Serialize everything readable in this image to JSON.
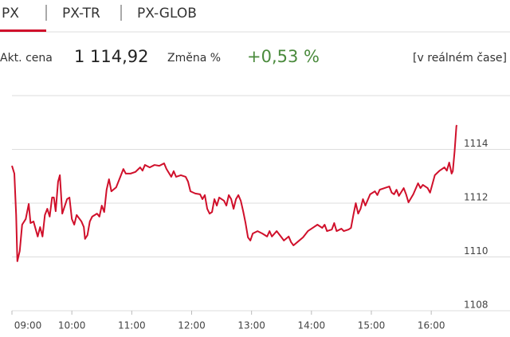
{
  "tabs": [
    "PX",
    "PX-TR",
    "PX-GLOB"
  ],
  "info": {
    "price_label": "Akt. cena",
    "price": "1 114,92",
    "change_label": "Změna %",
    "change": "+0,53 %",
    "realtime": "[v reálném čase]"
  },
  "chart_data": {
    "type": "line",
    "color": "#d0102b",
    "grid": true,
    "x": [
      9.0,
      9.04,
      9.07,
      9.09,
      9.13,
      9.17,
      9.23,
      9.28,
      9.31,
      9.36,
      9.43,
      9.47,
      9.51,
      9.55,
      9.59,
      9.63,
      9.67,
      9.7,
      9.73,
      9.77,
      9.8,
      9.84,
      9.92,
      9.96,
      10.0,
      10.04,
      10.08,
      10.16,
      10.2,
      10.22,
      10.26,
      10.3,
      10.34,
      10.42,
      10.46,
      10.5,
      10.54,
      10.58,
      10.62,
      10.66,
      10.74,
      10.82,
      10.86,
      10.9,
      10.98,
      11.06,
      11.14,
      11.18,
      11.22,
      11.3,
      11.38,
      11.46,
      11.54,
      11.58,
      11.66,
      11.7,
      11.74,
      11.82,
      11.9,
      11.94,
      11.98,
      12.06,
      12.14,
      12.18,
      12.22,
      12.26,
      12.3,
      12.34,
      12.38,
      12.42,
      12.46,
      12.54,
      12.58,
      12.62,
      12.66,
      12.7,
      12.74,
      12.78,
      12.82,
      12.86,
      12.9,
      12.94,
      12.98,
      13.02,
      13.1,
      13.18,
      13.26,
      13.3,
      13.34,
      13.42,
      13.5,
      13.54,
      13.62,
      13.66,
      13.7,
      13.78,
      13.86,
      13.94,
      14.02,
      14.1,
      14.18,
      14.22,
      14.26,
      14.34,
      14.38,
      14.42,
      14.5,
      14.54,
      14.62,
      14.66,
      14.7,
      14.74,
      14.78,
      14.82,
      14.86,
      14.9,
      14.98,
      15.06,
      15.1,
      15.14,
      15.22,
      15.3,
      15.34,
      15.38,
      15.42,
      15.46,
      15.54,
      15.58,
      15.62,
      15.7,
      15.78,
      15.82,
      15.86,
      15.94,
      15.98,
      16.06,
      16.14,
      16.22,
      16.26,
      16.3,
      16.34,
      16.36,
      16.39,
      16.42,
      16.43
    ],
    "values": [
      1113.39,
      1113.1,
      1111.56,
      1109.84,
      1110.22,
      1111.2,
      1111.41,
      1111.97,
      1111.26,
      1111.32,
      1110.76,
      1111.11,
      1110.76,
      1111.56,
      1111.79,
      1111.5,
      1112.21,
      1112.21,
      1111.7,
      1112.8,
      1113.04,
      1111.61,
      1112.15,
      1112.21,
      1111.41,
      1111.2,
      1111.56,
      1111.32,
      1111.11,
      1110.67,
      1110.81,
      1111.32,
      1111.5,
      1111.61,
      1111.5,
      1111.91,
      1111.67,
      1112.5,
      1112.89,
      1112.44,
      1112.59,
      1113.04,
      1113.27,
      1113.1,
      1113.1,
      1113.16,
      1113.33,
      1113.21,
      1113.42,
      1113.33,
      1113.42,
      1113.39,
      1113.48,
      1113.27,
      1112.98,
      1113.19,
      1112.98,
      1113.04,
      1112.98,
      1112.8,
      1112.44,
      1112.36,
      1112.33,
      1112.15,
      1112.3,
      1111.79,
      1111.61,
      1111.67,
      1112.15,
      1111.91,
      1112.21,
      1112.09,
      1111.91,
      1112.3,
      1112.15,
      1111.79,
      1112.15,
      1112.3,
      1112.09,
      1111.7,
      1111.26,
      1110.73,
      1110.61,
      1110.87,
      1110.96,
      1110.87,
      1110.76,
      1110.96,
      1110.76,
      1110.96,
      1110.73,
      1110.61,
      1110.76,
      1110.55,
      1110.43,
      1110.58,
      1110.73,
      1110.96,
      1111.08,
      1111.2,
      1111.08,
      1111.2,
      1110.96,
      1111.02,
      1111.26,
      1110.96,
      1111.05,
      1110.96,
      1111.02,
      1111.08,
      1111.56,
      1112.0,
      1111.61,
      1111.79,
      1112.15,
      1111.91,
      1112.33,
      1112.44,
      1112.3,
      1112.5,
      1112.56,
      1112.62,
      1112.39,
      1112.33,
      1112.5,
      1112.27,
      1112.56,
      1112.33,
      1112.03,
      1112.33,
      1112.74,
      1112.56,
      1112.68,
      1112.56,
      1112.39,
      1113.04,
      1113.21,
      1113.33,
      1113.21,
      1113.51,
      1113.1,
      1113.19,
      1113.93,
      1114.87,
      1114.9
    ],
    "xlim": [
      9,
      16.45
    ],
    "xticks": [
      {
        "value": 9,
        "label": "09:00"
      },
      {
        "value": 10,
        "label": "10:00"
      },
      {
        "value": 11,
        "label": "11:00"
      },
      {
        "value": 12,
        "label": "12:00"
      },
      {
        "value": 13,
        "label": "13:00"
      },
      {
        "value": 14,
        "label": "14:00"
      },
      {
        "value": 15,
        "label": "15:00"
      },
      {
        "value": 16,
        "label": "16:00"
      }
    ],
    "ylim": [
      1108,
      1116
    ],
    "yticks": [
      1108,
      1110,
      1112,
      1114
    ]
  }
}
